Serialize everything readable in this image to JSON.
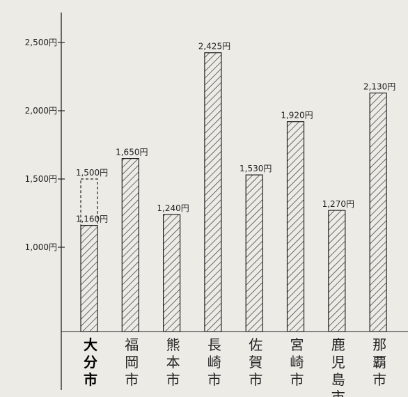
{
  "chart_data": {
    "type": "bar",
    "categories": [
      "大分市",
      "福岡市",
      "熊本市",
      "長崎市",
      "佐賀市",
      "宮崎市",
      "鹿児島市",
      "那覇市"
    ],
    "values": [
      1160,
      1650,
      1240,
      2425,
      1530,
      1920,
      1270,
      2130
    ],
    "value_labels": [
      "1,160円",
      "1,650円",
      "1,240円",
      "2,425円",
      "1,530円",
      "1,920円",
      "1,270円",
      "2,130円"
    ],
    "extra": {
      "category": "大分市",
      "value": 1500,
      "label": "1,500円",
      "style": "dashed-outline"
    },
    "y_ticks": [
      1000,
      1500,
      2000,
      2500
    ],
    "y_tick_labels": [
      "1,000円",
      "1,500円",
      "2,000円",
      "2,500円"
    ],
    "ylim": [
      850,
      2800
    ],
    "highlight_category": "大分市",
    "bar_fill": "hatched",
    "colors": {
      "ink": "#222222",
      "paper": "#ecebe6"
    }
  }
}
